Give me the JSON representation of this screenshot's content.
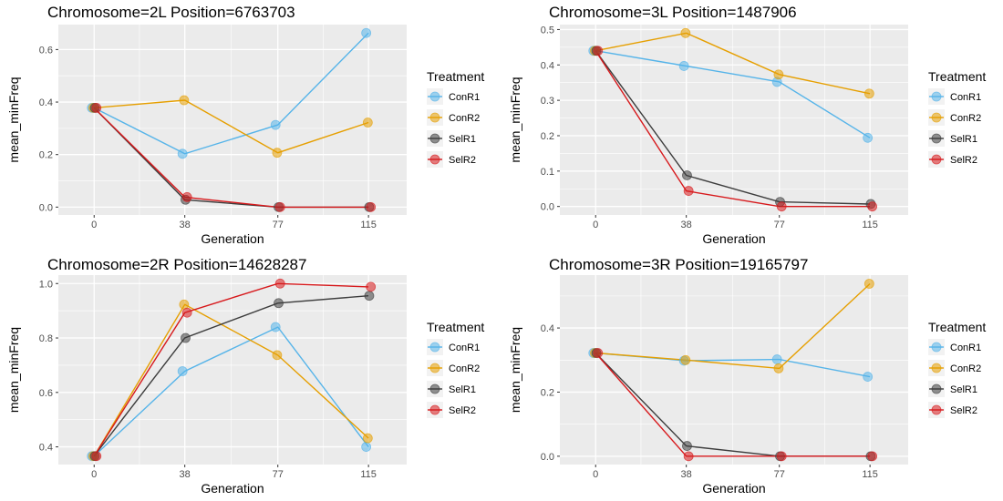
{
  "colors": {
    "ConR1": "#56B4E9",
    "ConR2": "#E69F00",
    "SelR1": "#3d3d3d",
    "SelR2": "#D7191C",
    "panel_bg": "#ebebeb",
    "grid": "#ffffff",
    "legend_key_bg": "#f2f2f2"
  },
  "legend": {
    "title": "Treatment",
    "placement": "right",
    "entries": [
      "ConR1",
      "ConR2",
      "SelR1",
      "SelR2"
    ]
  },
  "chart_data": [
    {
      "type": "line",
      "title": "Chromosome=2L  Position=6763703",
      "xlabel": "Generation",
      "ylabel": "mean_minFreq",
      "x": [
        0,
        38,
        77,
        115
      ],
      "xlim": [
        -15,
        131
      ],
      "ylim": [
        -0.03,
        0.695
      ],
      "yticks": [
        0.0,
        0.2,
        0.4,
        0.6
      ],
      "ytick_labels": [
        "0.0",
        "0.2",
        "0.4",
        "0.6"
      ],
      "grid": true,
      "series": [
        {
          "name": "ConR1",
          "values": [
            0.378,
            0.203,
            0.313,
            0.663
          ]
        },
        {
          "name": "ConR2",
          "values": [
            0.378,
            0.407,
            0.207,
            0.322
          ]
        },
        {
          "name": "SelR1",
          "values": [
            0.378,
            0.028,
            0.0,
            0.0
          ]
        },
        {
          "name": "SelR2",
          "values": [
            0.378,
            0.038,
            0.0,
            0.0
          ]
        }
      ]
    },
    {
      "type": "line",
      "title": "Chromosome=3L  Position=1487906",
      "xlabel": "Generation",
      "ylabel": "mean_minFreq",
      "x": [
        0,
        38,
        77,
        115
      ],
      "xlim": [
        -15,
        131
      ],
      "ylim": [
        -0.024,
        0.514
      ],
      "yticks": [
        0.0,
        0.1,
        0.2,
        0.3,
        0.4,
        0.5
      ],
      "ytick_labels": [
        "0.0",
        "0.1",
        "0.2",
        "0.3",
        "0.4",
        "0.5"
      ],
      "grid": true,
      "series": [
        {
          "name": "ConR1",
          "values": [
            0.44,
            0.397,
            0.352,
            0.194
          ]
        },
        {
          "name": "ConR2",
          "values": [
            0.44,
            0.49,
            0.373,
            0.319
          ]
        },
        {
          "name": "SelR1",
          "values": [
            0.44,
            0.088,
            0.013,
            0.007
          ]
        },
        {
          "name": "SelR2",
          "values": [
            0.44,
            0.044,
            0.0,
            0.0
          ]
        }
      ]
    },
    {
      "type": "line",
      "title": "Chromosome=2R  Position=14628287",
      "xlabel": "Generation",
      "ylabel": "mean_minFreq",
      "x": [
        0,
        38,
        77,
        115
      ],
      "xlim": [
        -15,
        131
      ],
      "ylim": [
        0.335,
        1.031
      ],
      "yticks": [
        0.4,
        0.6,
        0.8,
        1.0
      ],
      "ytick_labels": [
        "0.4",
        "0.6",
        "0.8",
        "1.0"
      ],
      "grid": true,
      "series": [
        {
          "name": "ConR1",
          "values": [
            0.366,
            0.678,
            0.84,
            0.4
          ]
        },
        {
          "name": "ConR2",
          "values": [
            0.366,
            0.923,
            0.737,
            0.432
          ]
        },
        {
          "name": "SelR1",
          "values": [
            0.366,
            0.8,
            0.928,
            0.955
          ]
        },
        {
          "name": "SelR2",
          "values": [
            0.366,
            0.893,
            1.0,
            0.988
          ]
        }
      ]
    },
    {
      "type": "line",
      "title": "Chromosome=3R  Position=19165797",
      "xlabel": "Generation",
      "ylabel": "mean_minFreq",
      "x": [
        0,
        38,
        77,
        115
      ],
      "xlim": [
        -15,
        131
      ],
      "ylim": [
        -0.026,
        0.565
      ],
      "yticks": [
        0.0,
        0.2,
        0.4
      ],
      "ytick_labels": [
        "0.0",
        "0.2",
        "0.4"
      ],
      "grid": true,
      "series": [
        {
          "name": "ConR1",
          "values": [
            0.322,
            0.298,
            0.302,
            0.248
          ]
        },
        {
          "name": "ConR2",
          "values": [
            0.322,
            0.3,
            0.274,
            0.538
          ]
        },
        {
          "name": "SelR1",
          "values": [
            0.322,
            0.032,
            0.0,
            0.0
          ]
        },
        {
          "name": "SelR2",
          "values": [
            0.322,
            0.0,
            0.0,
            0.0
          ]
        }
      ]
    }
  ]
}
